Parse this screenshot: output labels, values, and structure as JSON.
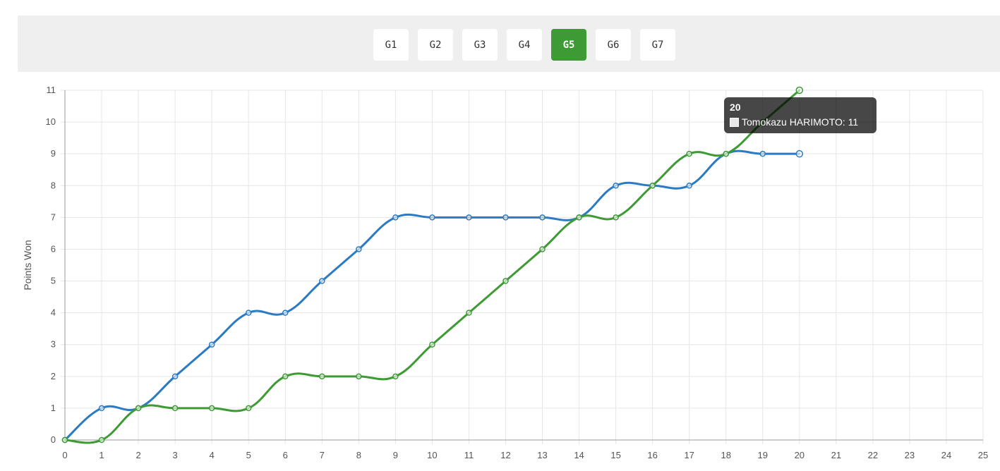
{
  "tabs": [
    {
      "label": "G1",
      "active": false
    },
    {
      "label": "G2",
      "active": false
    },
    {
      "label": "G3",
      "active": false
    },
    {
      "label": "G4",
      "active": false
    },
    {
      "label": "G5",
      "active": true
    },
    {
      "label": "G6",
      "active": false
    },
    {
      "label": "G7",
      "active": false
    }
  ],
  "tooltip": {
    "title": "20",
    "text": "Tomokazu HARIMOTO: 11"
  },
  "colors": {
    "active_tab": "#3e9a34",
    "series_blue": "#2a7ac4",
    "series_green": "#3e9a34",
    "grid": "#e6e6e6"
  },
  "chart_data": {
    "type": "line",
    "title": "",
    "xlabel": "",
    "ylabel": "Points Won",
    "xlim": [
      0,
      25
    ],
    "ylim": [
      0,
      11
    ],
    "x_ticks": [
      0,
      1,
      2,
      3,
      4,
      5,
      6,
      7,
      8,
      9,
      10,
      11,
      12,
      13,
      14,
      15,
      16,
      17,
      18,
      19,
      20,
      21,
      22,
      23,
      24,
      25
    ],
    "y_ticks": [
      0,
      1,
      2,
      3,
      4,
      5,
      6,
      7,
      8,
      9,
      10,
      11
    ],
    "grid": true,
    "series": [
      {
        "color": "#2a7ac4",
        "x": [
          0,
          1,
          2,
          3,
          4,
          5,
          6,
          7,
          8,
          9,
          10,
          11,
          12,
          13,
          14,
          15,
          16,
          17,
          18,
          19,
          20
        ],
        "values": [
          0,
          1,
          1,
          2,
          3,
          4,
          4,
          5,
          6,
          7,
          7,
          7,
          7,
          7,
          7,
          8,
          8,
          8,
          9,
          9,
          9
        ]
      },
      {
        "name": "Tomokazu HARIMOTO",
        "color": "#3e9a34",
        "x": [
          0,
          1,
          2,
          3,
          4,
          5,
          6,
          7,
          8,
          9,
          10,
          11,
          12,
          13,
          14,
          15,
          16,
          17,
          18,
          19,
          20
        ],
        "values": [
          0,
          0,
          1,
          1,
          1,
          1,
          2,
          2,
          2,
          2,
          3,
          4,
          5,
          6,
          7,
          7,
          8,
          9,
          9,
          10,
          11
        ]
      }
    ]
  }
}
